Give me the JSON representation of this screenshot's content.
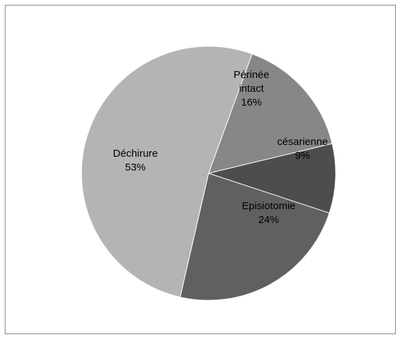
{
  "chart_data": {
    "type": "pie",
    "title": "",
    "slices": [
      {
        "label_lines": [
          "Périnée",
          "intact"
        ],
        "value_label": "16%",
        "value": 16,
        "color": "#878787"
      },
      {
        "label_lines": [
          "césarienne"
        ],
        "value_label": "9%",
        "value": 9,
        "color": "#4d4d4d"
      },
      {
        "label_lines": [
          "Episiotomie"
        ],
        "value_label": "24%",
        "value": 24,
        "color": "#606060"
      },
      {
        "label_lines": [
          "Déchirure"
        ],
        "value_label": "53%",
        "value": 53,
        "color": "#b4b4b4"
      }
    ],
    "legend": "none",
    "data_labels": "inside"
  }
}
